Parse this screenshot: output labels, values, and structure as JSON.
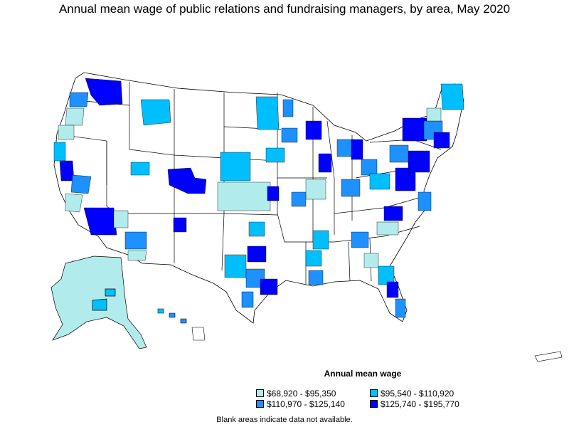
{
  "title": "Annual mean wage of public relations and fundraising managers, by area, May 2020",
  "legend": {
    "title": "Annual mean wage",
    "items": [
      {
        "label": "$68,920 - $95,350",
        "color": "#b2ebeb"
      },
      {
        "label": "$95,540 - $110,920",
        "color": "#00bfff"
      },
      {
        "label": "$110,970 - $125,140",
        "color": "#1e90ff"
      },
      {
        "label": "$125,740 - $195,770",
        "color": "#0000ff"
      }
    ]
  },
  "note": "Blank areas indicate data not available.",
  "colors": {
    "no_data": "#ffffff",
    "border": "#000000"
  }
}
